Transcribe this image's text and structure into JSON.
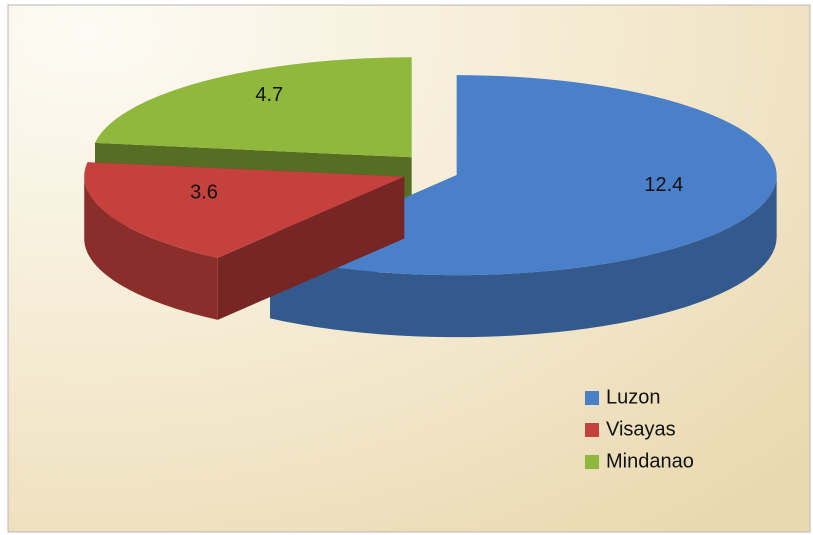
{
  "chart_data": {
    "type": "pie",
    "categories": [
      "Luzon",
      "Visayas",
      "Mindanao"
    ],
    "values": [
      12.4,
      3.6,
      4.7
    ],
    "colors": [
      "#4a7fc9",
      "#c4413d",
      "#8fb83c"
    ],
    "legend": "bottom-right"
  }
}
